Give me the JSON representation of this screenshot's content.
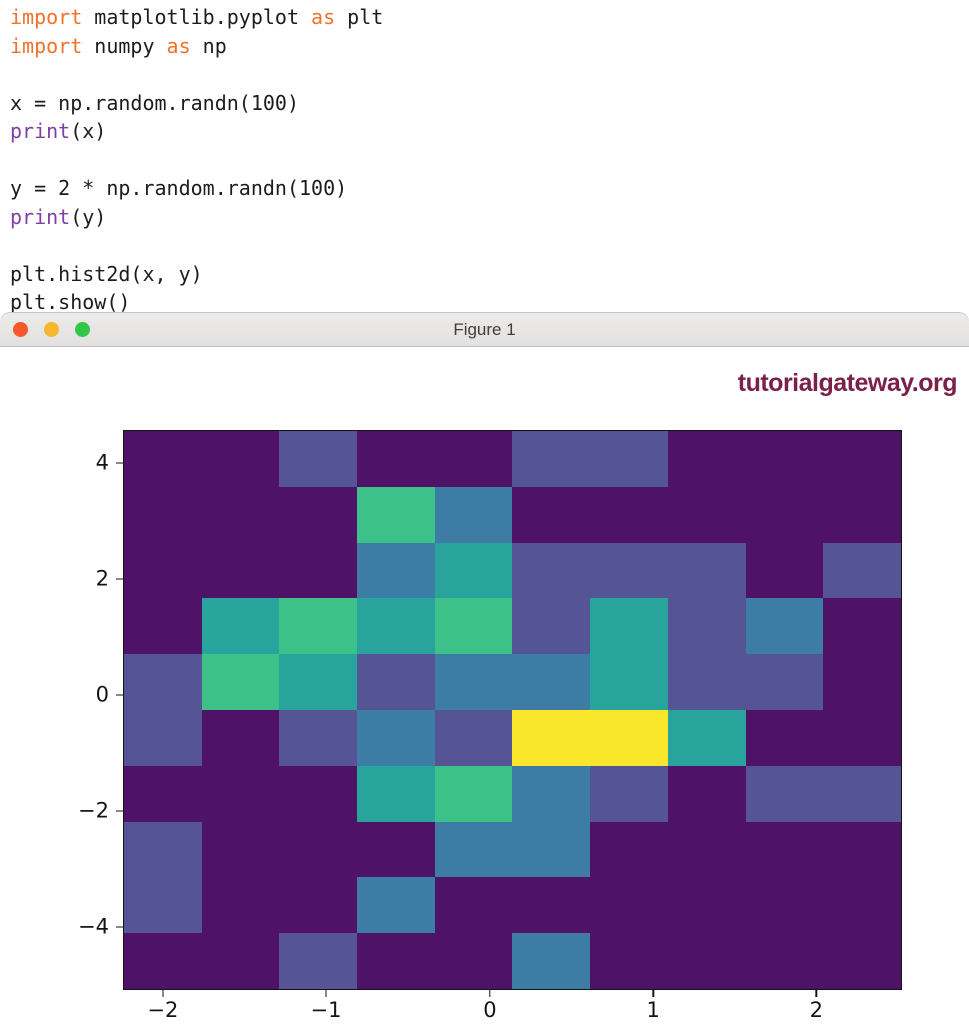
{
  "window": {
    "title": "Figure 1",
    "traffic_lights": {
      "close_color": "#f4582b",
      "minimize_color": "#f6b62e",
      "zoom_color": "#33c748"
    }
  },
  "watermark": {
    "text": "tutorialgateway.org",
    "color": "#7a2148"
  },
  "code": {
    "syntax_colors": {
      "kw": "#f0722c",
      "fn": "#813fa5",
      "plain": "#1c1c1c"
    },
    "lines": [
      [
        {
          "t": "import",
          "c": "kw"
        },
        {
          "t": " matplotlib.pyplot ",
          "c": "plain"
        },
        {
          "t": "as",
          "c": "kw"
        },
        {
          "t": " plt",
          "c": "plain"
        }
      ],
      [
        {
          "t": "import",
          "c": "kw"
        },
        {
          "t": " numpy ",
          "c": "plain"
        },
        {
          "t": "as",
          "c": "kw"
        },
        {
          "t": " np",
          "c": "plain"
        }
      ],
      [],
      [
        {
          "t": "x = np.random.randn(100)",
          "c": "plain"
        }
      ],
      [
        {
          "t": "print",
          "c": "fn"
        },
        {
          "t": "(x)",
          "c": "plain"
        }
      ],
      [],
      [
        {
          "t": "y = 2 * np.random.randn(100)",
          "c": "plain"
        }
      ],
      [
        {
          "t": "print",
          "c": "fn"
        },
        {
          "t": "(y)",
          "c": "plain"
        }
      ],
      [],
      [
        {
          "t": "plt.hist2d(x, y)",
          "c": "plain"
        }
      ],
      [
        {
          "t": "plt.show()",
          "c": "plain"
        }
      ]
    ]
  },
  "chart_data": {
    "type": "heatmap",
    "title": "",
    "description": "2D histogram (plt.hist2d) of 100 random points, 10x10 bins, viridis colormap",
    "bins": [
      10,
      10
    ],
    "total_points": 100,
    "x_range": [
      -2.24,
      2.54
    ],
    "y_range": [
      -5.09,
      4.55
    ],
    "x_ticks": {
      "labels": [
        "−2",
        "−1",
        "0",
        "1",
        "2"
      ],
      "fractions": [
        0.05,
        0.26,
        0.471,
        0.681,
        0.891
      ]
    },
    "y_ticks": {
      "labels": [
        "4",
        "2",
        "0",
        "−2",
        "−4"
      ],
      "fractions": [
        0.057,
        0.265,
        0.473,
        0.681,
        0.889
      ]
    },
    "grid": false,
    "palette": {
      "0": "#4e1267",
      "1": "#555495",
      "2": "#3d7ca4",
      "3": "#28a49c",
      "4": "#3ec089",
      "6": "#fae72c"
    },
    "counts_rows_top_to_bottom": [
      [
        0,
        0,
        1,
        0,
        0,
        1,
        1,
        0,
        0,
        0
      ],
      [
        0,
        0,
        0,
        4,
        2,
        0,
        0,
        0,
        0,
        0
      ],
      [
        0,
        0,
        0,
        2,
        3,
        1,
        1,
        1,
        0,
        1
      ],
      [
        0,
        3,
        4,
        3,
        4,
        1,
        3,
        1,
        2,
        0
      ],
      [
        1,
        4,
        3,
        1,
        2,
        2,
        3,
        1,
        1,
        0
      ],
      [
        1,
        0,
        1,
        2,
        1,
        6,
        6,
        3,
        0,
        0
      ],
      [
        0,
        0,
        0,
        3,
        4,
        2,
        1,
        0,
        1,
        1
      ],
      [
        1,
        0,
        0,
        0,
        2,
        2,
        0,
        0,
        0,
        0
      ],
      [
        1,
        0,
        0,
        2,
        0,
        0,
        0,
        0,
        0,
        0
      ],
      [
        0,
        0,
        1,
        0,
        0,
        2,
        0,
        0,
        0,
        0
      ]
    ]
  }
}
